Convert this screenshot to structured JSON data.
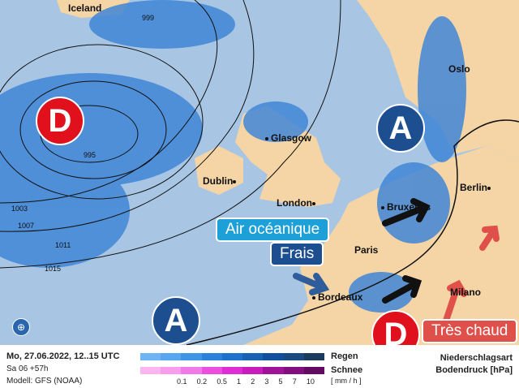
{
  "map": {
    "cities": {
      "iceland": "Iceland",
      "glasgow": "Glasgow",
      "dublin": "Dublin",
      "london": "London",
      "bruxelles": "Bruxelles",
      "paris": "Paris",
      "bordeaux": "Bordeaux",
      "berlin": "Berlin",
      "oslo": "Oslo",
      "milano": "Milano"
    },
    "isobars": [
      "999",
      "995",
      "1003",
      "1007",
      "1011",
      "1015"
    ],
    "pressure_centers": [
      {
        "type": "low",
        "label": "D"
      },
      {
        "type": "high",
        "label": "A"
      },
      {
        "type": "high",
        "label": "A"
      },
      {
        "type": "low",
        "label": "D"
      }
    ],
    "tags": {
      "oceanic": "Air océanique",
      "cool": "Frais",
      "hot": "Très chaud"
    },
    "colors": {
      "sea": "#a8c6e4",
      "land": "#f5d5a6",
      "rain": "#3f86d6",
      "low": "#e0101c",
      "high": "#1d4e8f",
      "hot_arrow": "#e0504a",
      "oceanic_tag": "#1da0d8"
    }
  },
  "legend": {
    "datetime": "Mo, 27.06.2022, 12..15 UTC",
    "run": "Sa 06 +57h",
    "model": "Modell: GFS (NOAA)",
    "rain": "Regen",
    "snow": "Schnee",
    "unit": "[ mm / h ]",
    "ticks": [
      "0.1",
      "0.2",
      "0.5",
      "1",
      "2",
      "3",
      "5",
      "7",
      "10"
    ],
    "title1": "Niederschlagsart",
    "title2": "Bodendruck [hPa]",
    "rain_colors": [
      "#6fb4f4",
      "#58a6f0",
      "#3f94e6",
      "#2b82da",
      "#1e72cc",
      "#1862b4",
      "#10509c",
      "#1a4a80",
      "#1a3a5e"
    ],
    "snow_colors": [
      "#fbb6f2",
      "#f89cee",
      "#f27ae8",
      "#ec4ee0",
      "#e02cd4",
      "#c81cbc",
      "#a0129a",
      "#820e80",
      "#640a62"
    ]
  }
}
